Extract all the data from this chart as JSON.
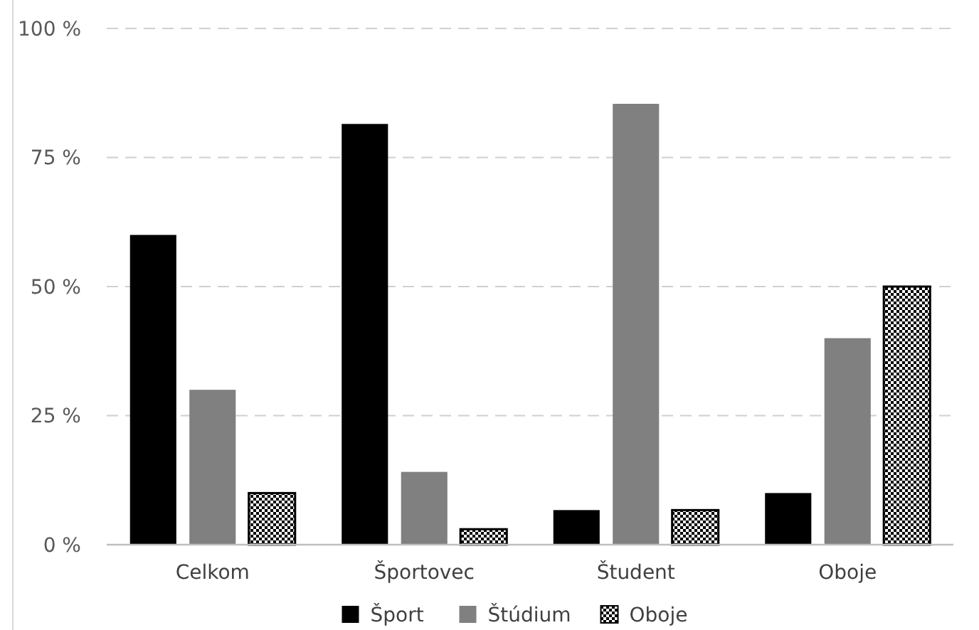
{
  "chart_data": {
    "type": "bar",
    "categories": [
      "Celkom",
      "Športovec",
      "Študent",
      "Oboje"
    ],
    "series": [
      {
        "name": "Šport",
        "color": "#000000",
        "values": [
          60,
          81.5,
          6.7,
          10
        ]
      },
      {
        "name": "Štúdium",
        "color": "#808080",
        "values": [
          30,
          14.1,
          85.4,
          40
        ]
      },
      {
        "name": "Oboje",
        "color": "#000000",
        "values": [
          10,
          3,
          6.7,
          50
        ]
      }
    ],
    "ylim": [
      0,
      100
    ],
    "yticks": [
      {
        "value": 0,
        "label": "0 %"
      },
      {
        "value": 25,
        "label": "25 %"
      },
      {
        "value": 50,
        "label": "50 %"
      },
      {
        "value": 75,
        "label": "75 %"
      },
      {
        "value": 100,
        "label": "100 %"
      }
    ],
    "grid": "y",
    "legend": "bottom"
  }
}
